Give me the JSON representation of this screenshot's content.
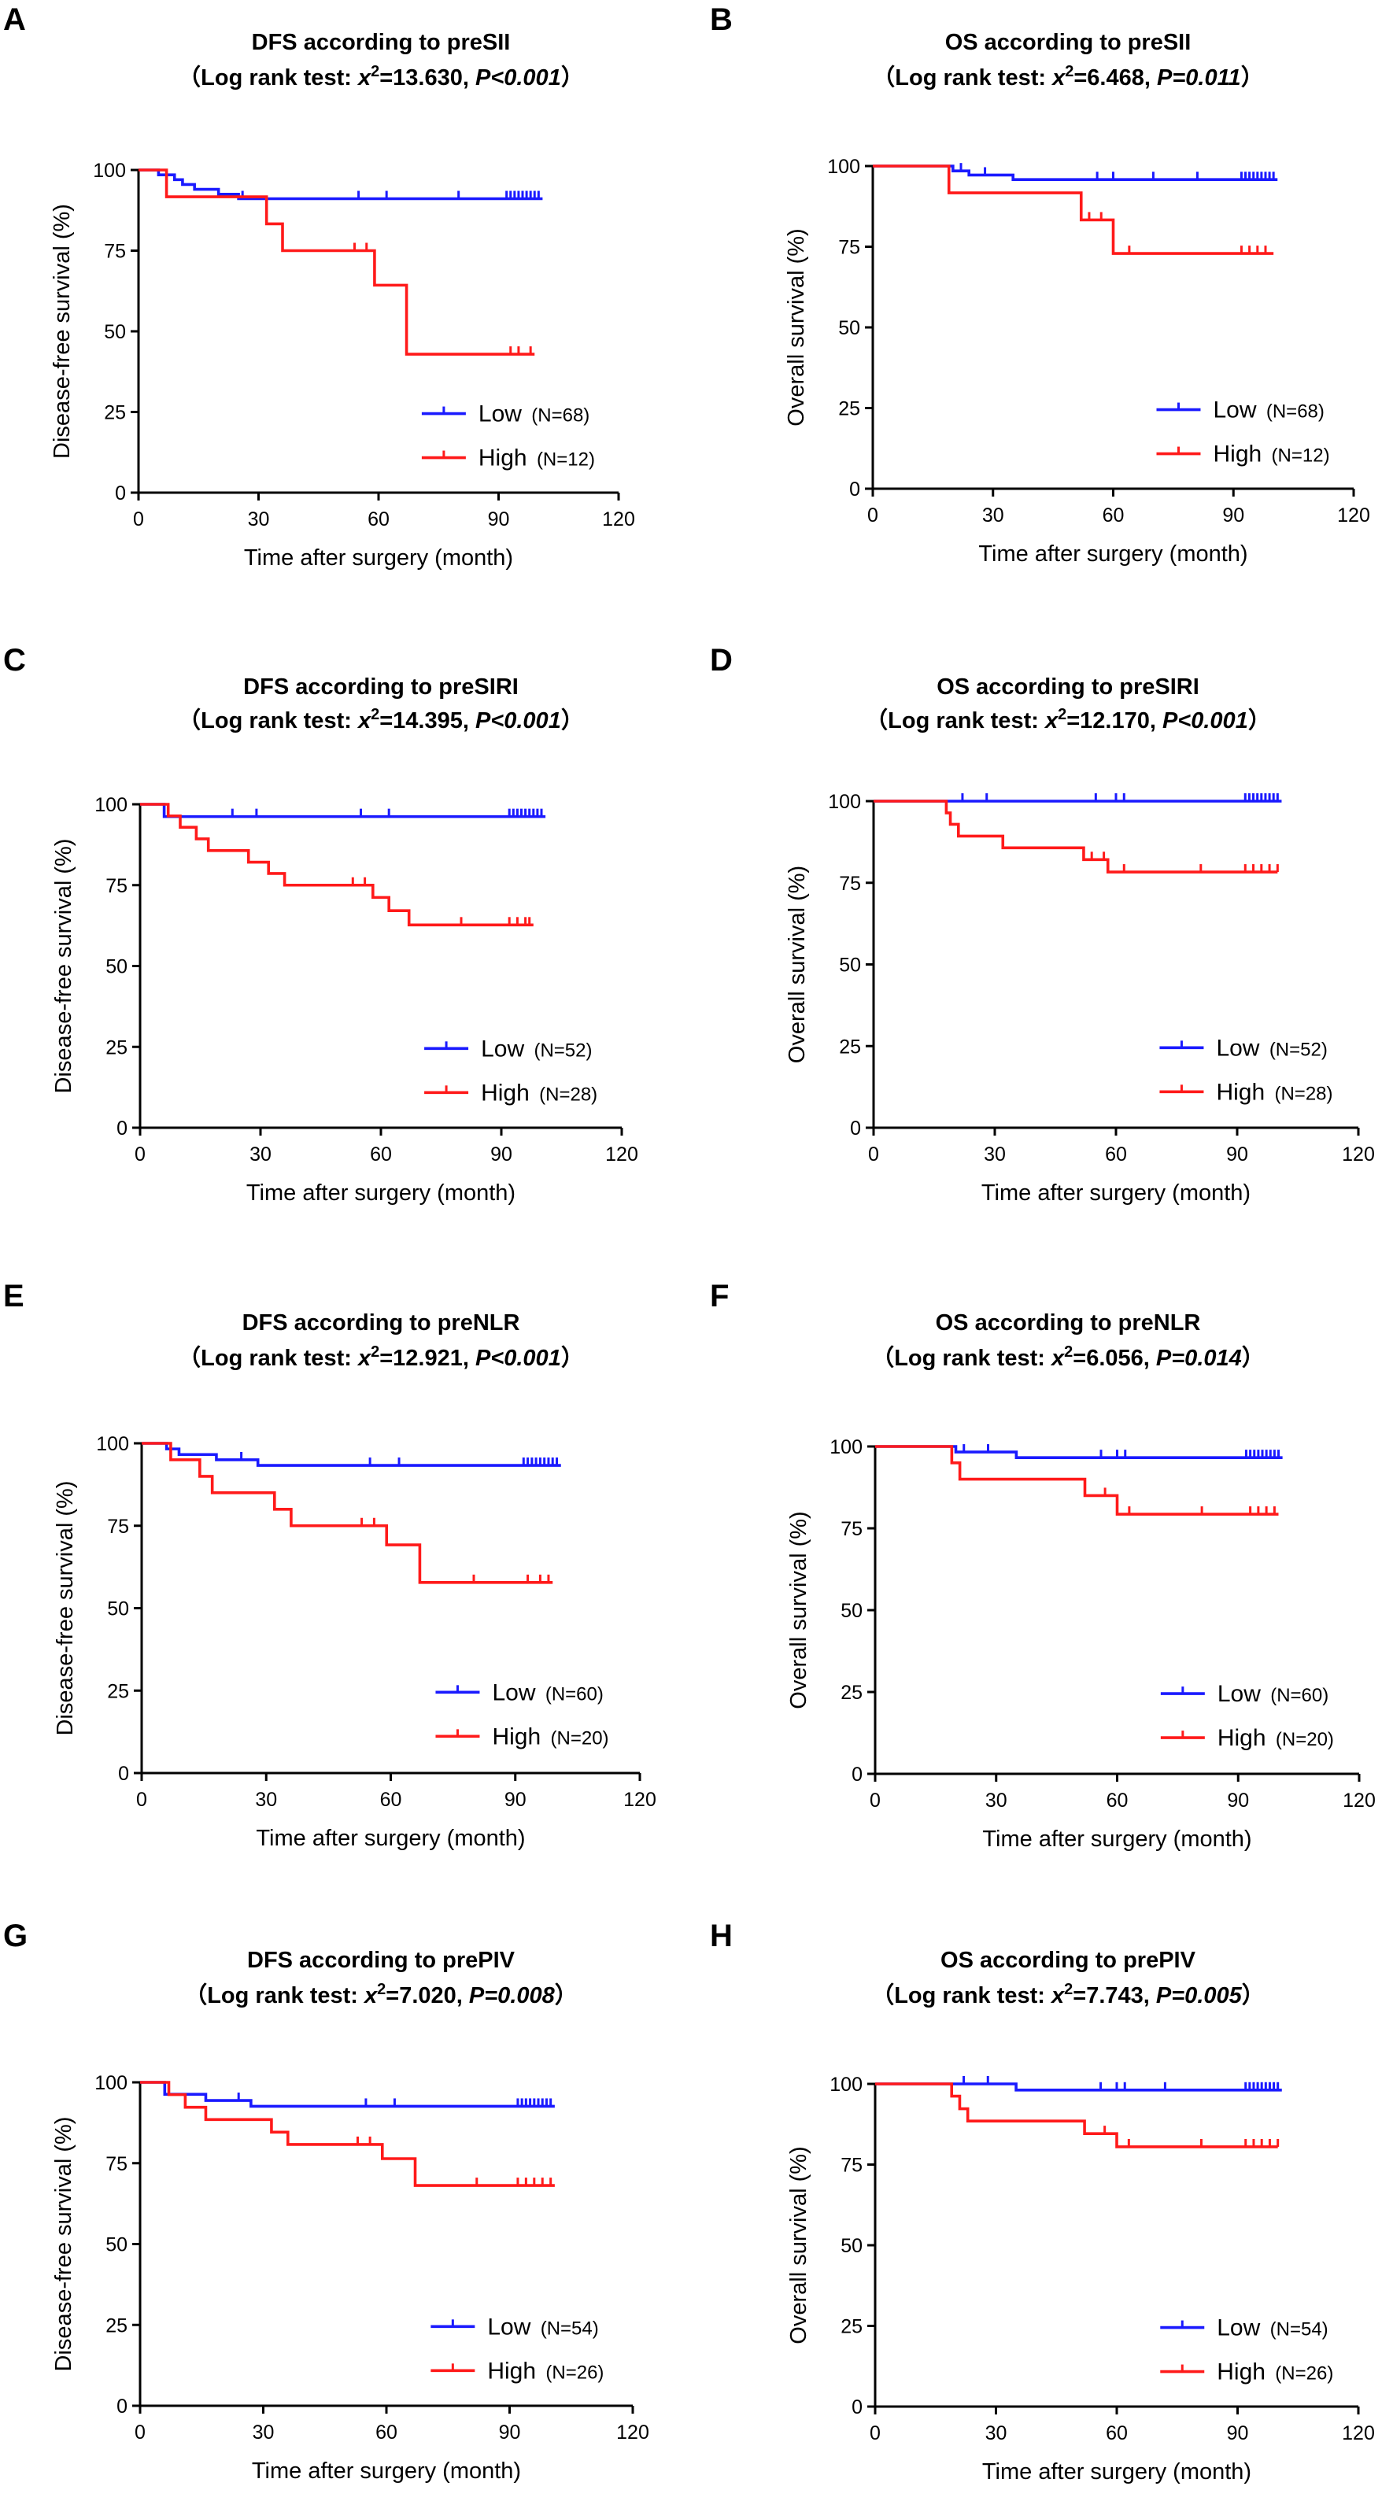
{
  "figure": "Kaplan-Meier survival curves by preoperative inflammatory indices",
  "colors": {
    "low": "#1a1aff",
    "high": "#ff1a1a",
    "axis": "#000000"
  },
  "chart_data": [
    {
      "panel": "A",
      "type": "line",
      "subtype": "kaplan-meier",
      "title": "DFS according to preSII",
      "subtitle": {
        "prefix": "（Log rank test: ",
        "stat_sym": "x",
        "stat_sup": "2",
        "stat_val": "=13.630, ",
        "p_text": "P<0.001",
        "suffix": "）"
      },
      "xlabel": "Time after surgery (month)",
      "ylabel": "Disease-free survival (%)",
      "xlim": [
        0,
        120
      ],
      "ylim": [
        0,
        100
      ],
      "xticks": [
        0,
        30,
        60,
        90,
        120
      ],
      "yticks": [
        0,
        25,
        50,
        75,
        100
      ],
      "legend_position": "lower-right",
      "series": [
        {
          "name": "Low",
          "n_label": "(N=68)",
          "color": "#1a1aff",
          "steps": [
            [
              0,
              100
            ],
            [
              5,
              98.5
            ],
            [
              9,
              97
            ],
            [
              11,
              95.5
            ],
            [
              14,
              94
            ],
            [
              20,
              92.5
            ],
            [
              25,
              91.1
            ],
            [
              101,
              91.1
            ]
          ],
          "censored": [
            26,
            55,
            62,
            80,
            92,
            93,
            94,
            95,
            96,
            97,
            98,
            99,
            100
          ]
        },
        {
          "name": "High",
          "n_label": "(N=12)",
          "color": "#ff1a1a",
          "steps": [
            [
              0,
              100
            ],
            [
              7,
              91.7
            ],
            [
              32,
              83.3
            ],
            [
              36,
              75
            ],
            [
              59,
              64.3
            ],
            [
              67,
              42.9
            ],
            [
              99,
              42.9
            ]
          ],
          "censored": [
            54,
            57,
            93,
            95,
            98
          ]
        }
      ]
    },
    {
      "panel": "B",
      "type": "line",
      "subtype": "kaplan-meier",
      "title": "OS according to preSII",
      "subtitle": {
        "prefix": "（Log rank test: ",
        "stat_sym": "x",
        "stat_sup": "2",
        "stat_val": "=6.468, ",
        "p_text": "P=0.011",
        "suffix": "）"
      },
      "xlabel": "Time after surgery (month)",
      "ylabel": "Overall survival (%)",
      "xlim": [
        0,
        120
      ],
      "ylim": [
        0,
        100
      ],
      "xticks": [
        0,
        30,
        60,
        90,
        120
      ],
      "yticks": [
        0,
        25,
        50,
        75,
        100
      ],
      "legend_position": "lower-right",
      "series": [
        {
          "name": "Low",
          "n_label": "(N=68)",
          "color": "#1a1aff",
          "steps": [
            [
              0,
              100
            ],
            [
              20,
              98.5
            ],
            [
              24,
              97.2
            ],
            [
              35,
              95.8
            ],
            [
              101,
              95.8
            ]
          ],
          "censored": [
            22,
            28,
            56,
            60,
            70,
            81,
            92,
            93,
            94,
            95,
            96,
            97,
            98,
            99,
            100
          ]
        },
        {
          "name": "High",
          "n_label": "(N=12)",
          "color": "#ff1a1a",
          "steps": [
            [
              0,
              100
            ],
            [
              19,
              91.7
            ],
            [
              52,
              83.3
            ],
            [
              60,
              72.9
            ],
            [
              100,
              72.9
            ]
          ],
          "censored": [
            54,
            57,
            64,
            92,
            94,
            96,
            98
          ]
        }
      ]
    },
    {
      "panel": "C",
      "type": "line",
      "subtype": "kaplan-meier",
      "title": "DFS according to preSIRI",
      "subtitle": {
        "prefix": "（Log rank test: ",
        "stat_sym": "x",
        "stat_sup": "2",
        "stat_val": "=14.395, ",
        "p_text": "P<0.001",
        "suffix": "）"
      },
      "xlabel": "Time after surgery (month)",
      "ylabel": "Disease-free survival (%)",
      "xlim": [
        0,
        120
      ],
      "ylim": [
        0,
        100
      ],
      "xticks": [
        0,
        30,
        60,
        90,
        120
      ],
      "yticks": [
        0,
        25,
        50,
        75,
        100
      ],
      "legend_position": "lower-right",
      "series": [
        {
          "name": "Low",
          "n_label": "(N=52)",
          "color": "#1a1aff",
          "steps": [
            [
              0,
              100
            ],
            [
              6,
              96.2
            ],
            [
              101,
              96.2
            ]
          ],
          "censored": [
            23,
            29,
            55,
            62,
            92,
            93,
            94,
            95,
            96,
            97,
            98,
            99,
            100
          ]
        },
        {
          "name": "High",
          "n_label": "(N=28)",
          "color": "#ff1a1a",
          "steps": [
            [
              0,
              100
            ],
            [
              7,
              96.4
            ],
            [
              10,
              92.9
            ],
            [
              14,
              89.3
            ],
            [
              17,
              85.7
            ],
            [
              27,
              82.1
            ],
            [
              32,
              78.6
            ],
            [
              36,
              75
            ],
            [
              58,
              71.2
            ],
            [
              62,
              67.1
            ],
            [
              67,
              62.7
            ],
            [
              98,
              62.7
            ]
          ],
          "censored": [
            53,
            56,
            80,
            92,
            94,
            96,
            97
          ]
        }
      ]
    },
    {
      "panel": "D",
      "type": "line",
      "subtype": "kaplan-meier",
      "title": "OS according to preSIRI",
      "subtitle": {
        "prefix": "（Log rank test: ",
        "stat_sym": "x",
        "stat_sup": "2",
        "stat_val": "=12.170, ",
        "p_text": "P<0.001",
        "suffix": "）"
      },
      "xlabel": "Time after surgery (month)",
      "ylabel": "Overall survival (%)",
      "xlim": [
        0,
        120
      ],
      "ylim": [
        0,
        100
      ],
      "xticks": [
        0,
        30,
        60,
        90,
        120
      ],
      "yticks": [
        0,
        25,
        50,
        75,
        100
      ],
      "legend_position": "lower-right",
      "series": [
        {
          "name": "Low",
          "n_label": "(N=52)",
          "color": "#1a1aff",
          "steps": [
            [
              0,
              100
            ],
            [
              101,
              100
            ]
          ],
          "censored": [
            22,
            28,
            55,
            60,
            62,
            92,
            93,
            94,
            95,
            96,
            97,
            98,
            99,
            100
          ]
        },
        {
          "name": "High",
          "n_label": "(N=28)",
          "color": "#ff1a1a",
          "steps": [
            [
              0,
              100
            ],
            [
              18,
              96.4
            ],
            [
              19,
              92.9
            ],
            [
              21,
              89.3
            ],
            [
              32,
              85.7
            ],
            [
              52,
              82.1
            ],
            [
              58,
              78.3
            ],
            [
              100,
              78.3
            ]
          ],
          "censored": [
            54,
            57,
            62,
            81,
            92,
            94,
            96,
            98,
            100
          ]
        }
      ]
    },
    {
      "panel": "E",
      "type": "line",
      "subtype": "kaplan-meier",
      "title": "DFS according to preNLR",
      "subtitle": {
        "prefix": "（Log rank test: ",
        "stat_sym": "x",
        "stat_sup": "2",
        "stat_val": "=12.921, ",
        "p_text": "P<0.001",
        "suffix": "）"
      },
      "xlabel": "Time after surgery (month)",
      "ylabel": "Disease-free survival (%)",
      "xlim": [
        0,
        120
      ],
      "ylim": [
        0,
        100
      ],
      "xticks": [
        0,
        30,
        60,
        90,
        120
      ],
      "yticks": [
        0,
        25,
        50,
        75,
        100
      ],
      "legend_position": "lower-right",
      "series": [
        {
          "name": "Low",
          "n_label": "(N=60)",
          "color": "#1a1aff",
          "steps": [
            [
              0,
              100
            ],
            [
              6,
              98.3
            ],
            [
              9,
              96.6
            ],
            [
              18,
              95
            ],
            [
              28,
              93.3
            ],
            [
              101,
              93.3
            ]
          ],
          "censored": [
            24,
            55,
            62,
            92,
            93,
            94,
            95,
            96,
            97,
            98,
            99,
            100
          ]
        },
        {
          "name": "High",
          "n_label": "(N=20)",
          "color": "#ff1a1a",
          "steps": [
            [
              0,
              100
            ],
            [
              7,
              95
            ],
            [
              14,
              90
            ],
            [
              17,
              85
            ],
            [
              32,
              80
            ],
            [
              36,
              75
            ],
            [
              59,
              69.2
            ],
            [
              67,
              57.8
            ],
            [
              99,
              57.8
            ]
          ],
          "censored": [
            53,
            56,
            80,
            93,
            96,
            98
          ]
        }
      ]
    },
    {
      "panel": "F",
      "type": "line",
      "subtype": "kaplan-meier",
      "title": "OS according to preNLR",
      "subtitle": {
        "prefix": "（Log rank test: ",
        "stat_sym": "x",
        "stat_sup": "2",
        "stat_val": "=6.056, ",
        "p_text": "P=0.014",
        "suffix": "）"
      },
      "xlabel": "Time after surgery (month)",
      "ylabel": "Overall survival (%)",
      "xlim": [
        0,
        120
      ],
      "ylim": [
        0,
        100
      ],
      "xticks": [
        0,
        30,
        60,
        90,
        120
      ],
      "yticks": [
        0,
        25,
        50,
        75,
        100
      ],
      "legend_position": "lower-right",
      "series": [
        {
          "name": "Low",
          "n_label": "(N=60)",
          "color": "#1a1aff",
          "steps": [
            [
              0,
              100
            ],
            [
              20,
              98.3
            ],
            [
              35,
              96.6
            ],
            [
              101,
              96.6
            ]
          ],
          "censored": [
            22,
            28,
            56,
            60,
            62,
            92,
            93,
            94,
            95,
            96,
            97,
            98,
            99,
            100
          ]
        },
        {
          "name": "High",
          "n_label": "(N=20)",
          "color": "#ff1a1a",
          "steps": [
            [
              0,
              100
            ],
            [
              19,
              95
            ],
            [
              21,
              90
            ],
            [
              52,
              85
            ],
            [
              60,
              79.3
            ],
            [
              100,
              79.3
            ]
          ],
          "censored": [
            57,
            63,
            81,
            93,
            95,
            97,
            99
          ]
        }
      ]
    },
    {
      "panel": "G",
      "type": "line",
      "subtype": "kaplan-meier",
      "title": "DFS according to prePIV",
      "subtitle": {
        "prefix": "（Log rank test: ",
        "stat_sym": "x",
        "stat_sup": "2",
        "stat_val": "=7.020, ",
        "p_text": "P=0.008",
        "suffix": "）"
      },
      "xlabel": "Time after surgery (month)",
      "ylabel": "Disease-free survival (%)",
      "xlim": [
        0,
        120
      ],
      "ylim": [
        0,
        100
      ],
      "xticks": [
        0,
        30,
        60,
        90,
        120
      ],
      "yticks": [
        0,
        25,
        50,
        75,
        100
      ],
      "legend_position": "lower-right",
      "series": [
        {
          "name": "Low",
          "n_label": "(N=54)",
          "color": "#1a1aff",
          "steps": [
            [
              0,
              100
            ],
            [
              6,
              96.3
            ],
            [
              16,
              94.4
            ],
            [
              27,
              92.6
            ],
            [
              101,
              92.6
            ]
          ],
          "censored": [
            24,
            55,
            62,
            92,
            93,
            94,
            95,
            96,
            97,
            98,
            99,
            100
          ]
        },
        {
          "name": "High",
          "n_label": "(N=26)",
          "color": "#ff1a1a",
          "steps": [
            [
              0,
              100
            ],
            [
              7,
              96.2
            ],
            [
              11,
              92.3
            ],
            [
              16,
              88.5
            ],
            [
              32,
              84.6
            ],
            [
              36,
              80.8
            ],
            [
              59,
              76.4
            ],
            [
              67,
              68.1
            ],
            [
              101,
              68.1
            ]
          ],
          "censored": [
            53,
            56,
            82,
            92,
            94,
            96,
            98,
            100
          ]
        }
      ]
    },
    {
      "panel": "H",
      "type": "line",
      "subtype": "kaplan-meier",
      "title": "OS according to prePIV",
      "subtitle": {
        "prefix": "（Log rank test: ",
        "stat_sym": "x",
        "stat_sup": "2",
        "stat_val": "=7.743, ",
        "p_text": "P=0.005",
        "suffix": "）"
      },
      "xlabel": "Time after surgery (month)",
      "ylabel": "Overall survival (%)",
      "xlim": [
        0,
        120
      ],
      "ylim": [
        0,
        100
      ],
      "xticks": [
        0,
        30,
        60,
        90,
        120
      ],
      "yticks": [
        0,
        25,
        50,
        75,
        100
      ],
      "legend_position": "lower-right",
      "series": [
        {
          "name": "Low",
          "n_label": "(N=54)",
          "color": "#1a1aff",
          "steps": [
            [
              0,
              100
            ],
            [
              35,
              98.1
            ],
            [
              101,
              98.1
            ]
          ],
          "censored": [
            22,
            28,
            56,
            60,
            62,
            72,
            92,
            93,
            94,
            95,
            96,
            97,
            98,
            99,
            100
          ]
        },
        {
          "name": "High",
          "n_label": "(N=26)",
          "color": "#ff1a1a",
          "steps": [
            [
              0,
              100
            ],
            [
              19,
              96.2
            ],
            [
              21,
              92.3
            ],
            [
              23,
              88.5
            ],
            [
              52,
              84.6
            ],
            [
              60,
              80.5
            ],
            [
              100,
              80.5
            ]
          ],
          "censored": [
            57,
            63,
            81,
            92,
            94,
            96,
            98,
            100
          ]
        }
      ]
    }
  ]
}
